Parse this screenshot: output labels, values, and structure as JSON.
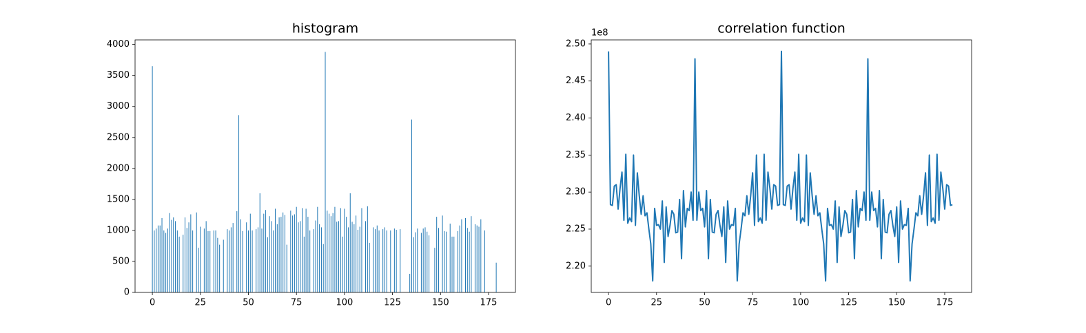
{
  "chart_data": [
    {
      "type": "bar",
      "title": "histogram",
      "color": "#1f77b4",
      "x": [
        0,
        1,
        2,
        3,
        4,
        5,
        6,
        7,
        8,
        9,
        10,
        11,
        12,
        13,
        14,
        15,
        16,
        17,
        18,
        19,
        20,
        21,
        22,
        23,
        24,
        25,
        26,
        27,
        28,
        29,
        30,
        31,
        32,
        33,
        34,
        35,
        36,
        37,
        38,
        39,
        40,
        41,
        42,
        43,
        44,
        45,
        46,
        47,
        48,
        49,
        50,
        51,
        52,
        53,
        54,
        55,
        56,
        57,
        58,
        59,
        60,
        61,
        62,
        63,
        64,
        65,
        66,
        67,
        68,
        69,
        70,
        71,
        72,
        73,
        74,
        75,
        76,
        77,
        78,
        79,
        80,
        81,
        82,
        83,
        84,
        85,
        86,
        87,
        88,
        89,
        90,
        91,
        92,
        93,
        94,
        95,
        96,
        97,
        98,
        99,
        100,
        101,
        102,
        103,
        104,
        105,
        106,
        107,
        108,
        109,
        110,
        111,
        112,
        113,
        114,
        115,
        116,
        117,
        118,
        119,
        120,
        121,
        122,
        123,
        124,
        125,
        126,
        127,
        128,
        129,
        130,
        131,
        132,
        133,
        134,
        135,
        136,
        137,
        138,
        139,
        140,
        141,
        142,
        143,
        144,
        145,
        146,
        147,
        148,
        149,
        150,
        151,
        152,
        153,
        154,
        155,
        156,
        157,
        158,
        159,
        160,
        161,
        162,
        163,
        164,
        165,
        166,
        167,
        168,
        169,
        170,
        171,
        172,
        173,
        174,
        175,
        176,
        177,
        178,
        179
      ],
      "values": [
        3650,
        1000,
        1030,
        1080,
        1080,
        1200,
        1000,
        960,
        1030,
        1280,
        1170,
        1210,
        1150,
        1000,
        900,
        0,
        930,
        1210,
        1040,
        1130,
        1260,
        1000,
        0,
        1290,
        720,
        1060,
        0,
        1030,
        1150,
        990,
        990,
        0,
        1000,
        1000,
        880,
        770,
        0,
        850,
        0,
        1020,
        1000,
        1050,
        1120,
        0,
        1310,
        2860,
        1180,
        990,
        0,
        1130,
        1000,
        1270,
        1000,
        0,
        1020,
        1050,
        1600,
        1030,
        1270,
        1330,
        890,
        1230,
        1150,
        1000,
        1350,
        1100,
        1210,
        1220,
        1290,
        1250,
        770,
        0,
        1320,
        1240,
        1260,
        1380,
        1130,
        1150,
        1360,
        900,
        1350,
        1220,
        1000,
        0,
        1020,
        1160,
        1380,
        1100,
        1050,
        780,
        3880,
        1320,
        1270,
        1230,
        1280,
        1380,
        1140,
        1150,
        1360,
        900,
        1350,
        1220,
        1050,
        1600,
        1140,
        1100,
        1240,
        1010,
        1060,
        1360,
        0,
        1150,
        1390,
        800,
        0,
        1050,
        1020,
        1080,
        1000,
        0,
        1020,
        1050,
        1000,
        0,
        1000,
        0,
        1030,
        1010,
        0,
        1020,
        0,
        0,
        0,
        0,
        300,
        2790,
        890,
        970,
        1030,
        0,
        960,
        1030,
        1050,
        980,
        920,
        0,
        0,
        720,
        1220,
        1040,
        0,
        1240,
        990,
        980,
        0,
        1110,
        900,
        900,
        0,
        990,
        1080,
        1180,
        0,
        1200,
        1040,
        980,
        1230,
        0,
        1100,
        1080,
        1060,
        1180,
        0,
        1000,
        0,
        0,
        0,
        0,
        0,
        480
      ],
      "xlim": [
        -9,
        189
      ],
      "xticks": [
        0,
        25,
        50,
        75,
        100,
        125,
        150,
        175
      ],
      "ylim": [
        0,
        4074
      ],
      "yticks": [
        0,
        500,
        1000,
        1500,
        2000,
        2500,
        3000,
        3500,
        4000
      ]
    },
    {
      "type": "line",
      "title": "correlation function",
      "color": "#1f77b4",
      "offset_label": "1e8",
      "x": [
        0,
        1,
        2,
        3,
        4,
        5,
        6,
        7,
        8,
        9,
        10,
        11,
        12,
        13,
        14,
        15,
        16,
        17,
        18,
        19,
        20,
        21,
        22,
        23,
        24,
        25,
        26,
        27,
        28,
        29,
        30,
        31,
        32,
        33,
        34,
        35,
        36,
        37,
        38,
        39,
        40,
        41,
        42,
        43,
        44,
        45,
        46,
        47,
        48,
        49,
        50,
        51,
        52,
        53,
        54,
        55,
        56,
        57,
        58,
        59,
        60,
        61,
        62,
        63,
        64,
        65,
        66,
        67,
        68,
        69,
        70,
        71,
        72,
        73,
        74,
        75,
        76,
        77,
        78,
        79,
        80,
        81,
        82,
        83,
        84,
        85,
        86,
        87,
        88,
        89,
        90,
        91,
        92,
        93,
        94,
        95,
        96,
        97,
        98,
        99,
        100,
        101,
        102,
        103,
        104,
        105,
        106,
        107,
        108,
        109,
        110,
        111,
        112,
        113,
        114,
        115,
        116,
        117,
        118,
        119,
        120,
        121,
        122,
        123,
        124,
        125,
        126,
        127,
        128,
        129,
        130,
        131,
        132,
        133,
        134,
        135,
        136,
        137,
        138,
        139,
        140,
        141,
        142,
        143,
        144,
        145,
        146,
        147,
        148,
        149,
        150,
        151,
        152,
        153,
        154,
        155,
        156,
        157,
        158,
        159,
        160,
        161,
        162,
        163,
        164,
        165,
        166,
        167,
        168,
        169,
        170,
        171,
        172,
        173,
        174,
        175,
        176,
        177,
        178,
        179
      ],
      "values": [
        2.49,
        2.283,
        2.282,
        2.308,
        2.31,
        2.277,
        2.305,
        2.327,
        2.262,
        2.351,
        2.258,
        2.265,
        2.26,
        2.35,
        2.255,
        2.326,
        2.295,
        2.27,
        2.295,
        2.268,
        2.272,
        2.25,
        2.23,
        2.18,
        2.278,
        2.255,
        2.256,
        2.25,
        2.288,
        2.205,
        2.28,
        2.24,
        2.255,
        2.275,
        2.27,
        2.245,
        2.246,
        2.29,
        2.21,
        2.302,
        2.253,
        2.278,
        2.275,
        2.3,
        2.262,
        2.48,
        2.262,
        2.3,
        2.275,
        2.278,
        2.253,
        2.302,
        2.21,
        2.29,
        2.246,
        2.245,
        2.27,
        2.275,
        2.255,
        2.24,
        2.28,
        2.205,
        2.288,
        2.25,
        2.256,
        2.255,
        2.278,
        2.18,
        2.23,
        2.25,
        2.272,
        2.268,
        2.295,
        2.27,
        2.295,
        2.326,
        2.255,
        2.35,
        2.26,
        2.265,
        2.258,
        2.351,
        2.262,
        2.327,
        2.305,
        2.277,
        2.31,
        2.308,
        2.282,
        2.283,
        2.49,
        2.283,
        2.282,
        2.308,
        2.31,
        2.277,
        2.305,
        2.327,
        2.262,
        2.351,
        2.258,
        2.265,
        2.26,
        2.35,
        2.255,
        2.326,
        2.295,
        2.27,
        2.295,
        2.268,
        2.272,
        2.25,
        2.23,
        2.18,
        2.278,
        2.255,
        2.256,
        2.25,
        2.288,
        2.205,
        2.28,
        2.24,
        2.255,
        2.275,
        2.27,
        2.245,
        2.246,
        2.29,
        2.21,
        2.302,
        2.253,
        2.278,
        2.275,
        2.3,
        2.262,
        2.48,
        2.262,
        2.3,
        2.275,
        2.278,
        2.253,
        2.302,
        2.21,
        2.29,
        2.246,
        2.245,
        2.27,
        2.275,
        2.255,
        2.24,
        2.28,
        2.205,
        2.288,
        2.25,
        2.256,
        2.255,
        2.278,
        2.18,
        2.23,
        2.25,
        2.272,
        2.268,
        2.295,
        2.27,
        2.295,
        2.326,
        2.255,
        2.35,
        2.26,
        2.265,
        2.258,
        2.351,
        2.262,
        2.327,
        2.305,
        2.277,
        2.31,
        2.308,
        2.282,
        2.283
      ],
      "xlim": [
        -9,
        189
      ],
      "xticks": [
        0,
        25,
        50,
        75,
        100,
        125,
        150,
        175
      ],
      "ylim": [
        2.1645,
        2.5055
      ],
      "yticks": [
        {
          "value": 2.2,
          "label": "2.20"
        },
        {
          "value": 2.25,
          "label": "2.25"
        },
        {
          "value": 2.3,
          "label": "2.30"
        },
        {
          "value": 2.35,
          "label": "2.35"
        },
        {
          "value": 2.4,
          "label": "2.40"
        },
        {
          "value": 2.45,
          "label": "2.45"
        },
        {
          "value": 2.5,
          "label": "2.50"
        }
      ]
    }
  ]
}
